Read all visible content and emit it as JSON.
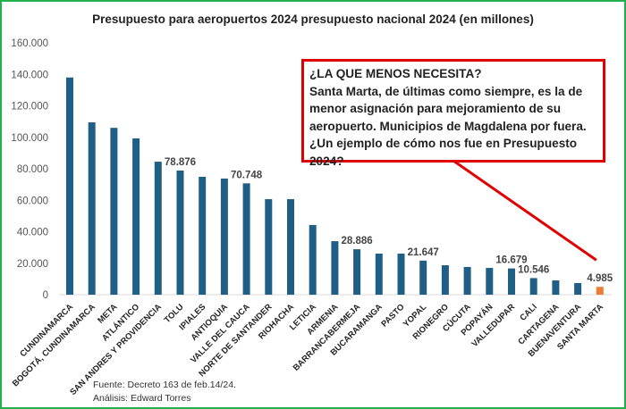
{
  "chart_data": {
    "type": "bar",
    "title": "Presupuesto para aeropuertos 2024 presupuesto nacional 2024 (en millones)",
    "xlabel": "",
    "ylabel": "",
    "ylim": [
      0,
      160000
    ],
    "yticks": [
      "0",
      "20.000",
      "40.000",
      "60.000",
      "80.000",
      "100.000",
      "120.000",
      "140.000",
      "160.000"
    ],
    "categories": [
      "CUNDINAMARCA",
      "BOGOTÁ, CUNDINAMARCA",
      "META",
      "ATLÁNTICO",
      "SAN ANDRES Y PROVIDENCIA",
      "TOLU",
      "IPIALES",
      "ANTIOQUIA",
      "VALLE DEL CAUCA",
      "NORTE DE SANTANDER",
      "RIOHACHA",
      "LETICIA",
      "ARMENIA",
      "BARRANCABERMEJA",
      "BUCARAMANGA",
      "PASTO",
      "YOPAL",
      "RIONEGRO",
      "CÚCUTA",
      "POPAYÁN",
      "VALLEDUPAR",
      "CALI",
      "CARTAGENA",
      "BUENAVENTURA",
      "SANTA MARTA"
    ],
    "values": [
      138000,
      109500,
      106000,
      99300,
      84500,
      78876,
      74900,
      73800,
      70748,
      60700,
      60700,
      44300,
      34000,
      28886,
      26100,
      26100,
      21647,
      18700,
      17600,
      17000,
      16679,
      10546,
      9100,
      7400,
      4985
    ],
    "data_labels": {
      "5": "78.876",
      "8": "70.748",
      "13": "28.886",
      "16": "21.647",
      "20": "16.679",
      "21": "10.546",
      "24": "4.985"
    },
    "colors": {
      "bar": "#1f5f86",
      "highlight": "#ed7d31",
      "callout": "#e00000",
      "border": "#22b14c"
    },
    "highlight_index": 24,
    "grid": false
  },
  "callout": {
    "lines": [
      "¿LA QUE MENOS NECESITA?",
      "Santa Marta, de últimas como siempre, es la de",
      "menor asignación para mejoramiento de su",
      "aeropuerto. Municipios de Magdalena por fuera.",
      "¿Un ejemplo de cómo nos fue en Presupuesto 2024?"
    ]
  },
  "source": {
    "line1": "Fuente: Decreto 163 de feb.14/24.",
    "line2": "Análisis: Edward Torres"
  }
}
